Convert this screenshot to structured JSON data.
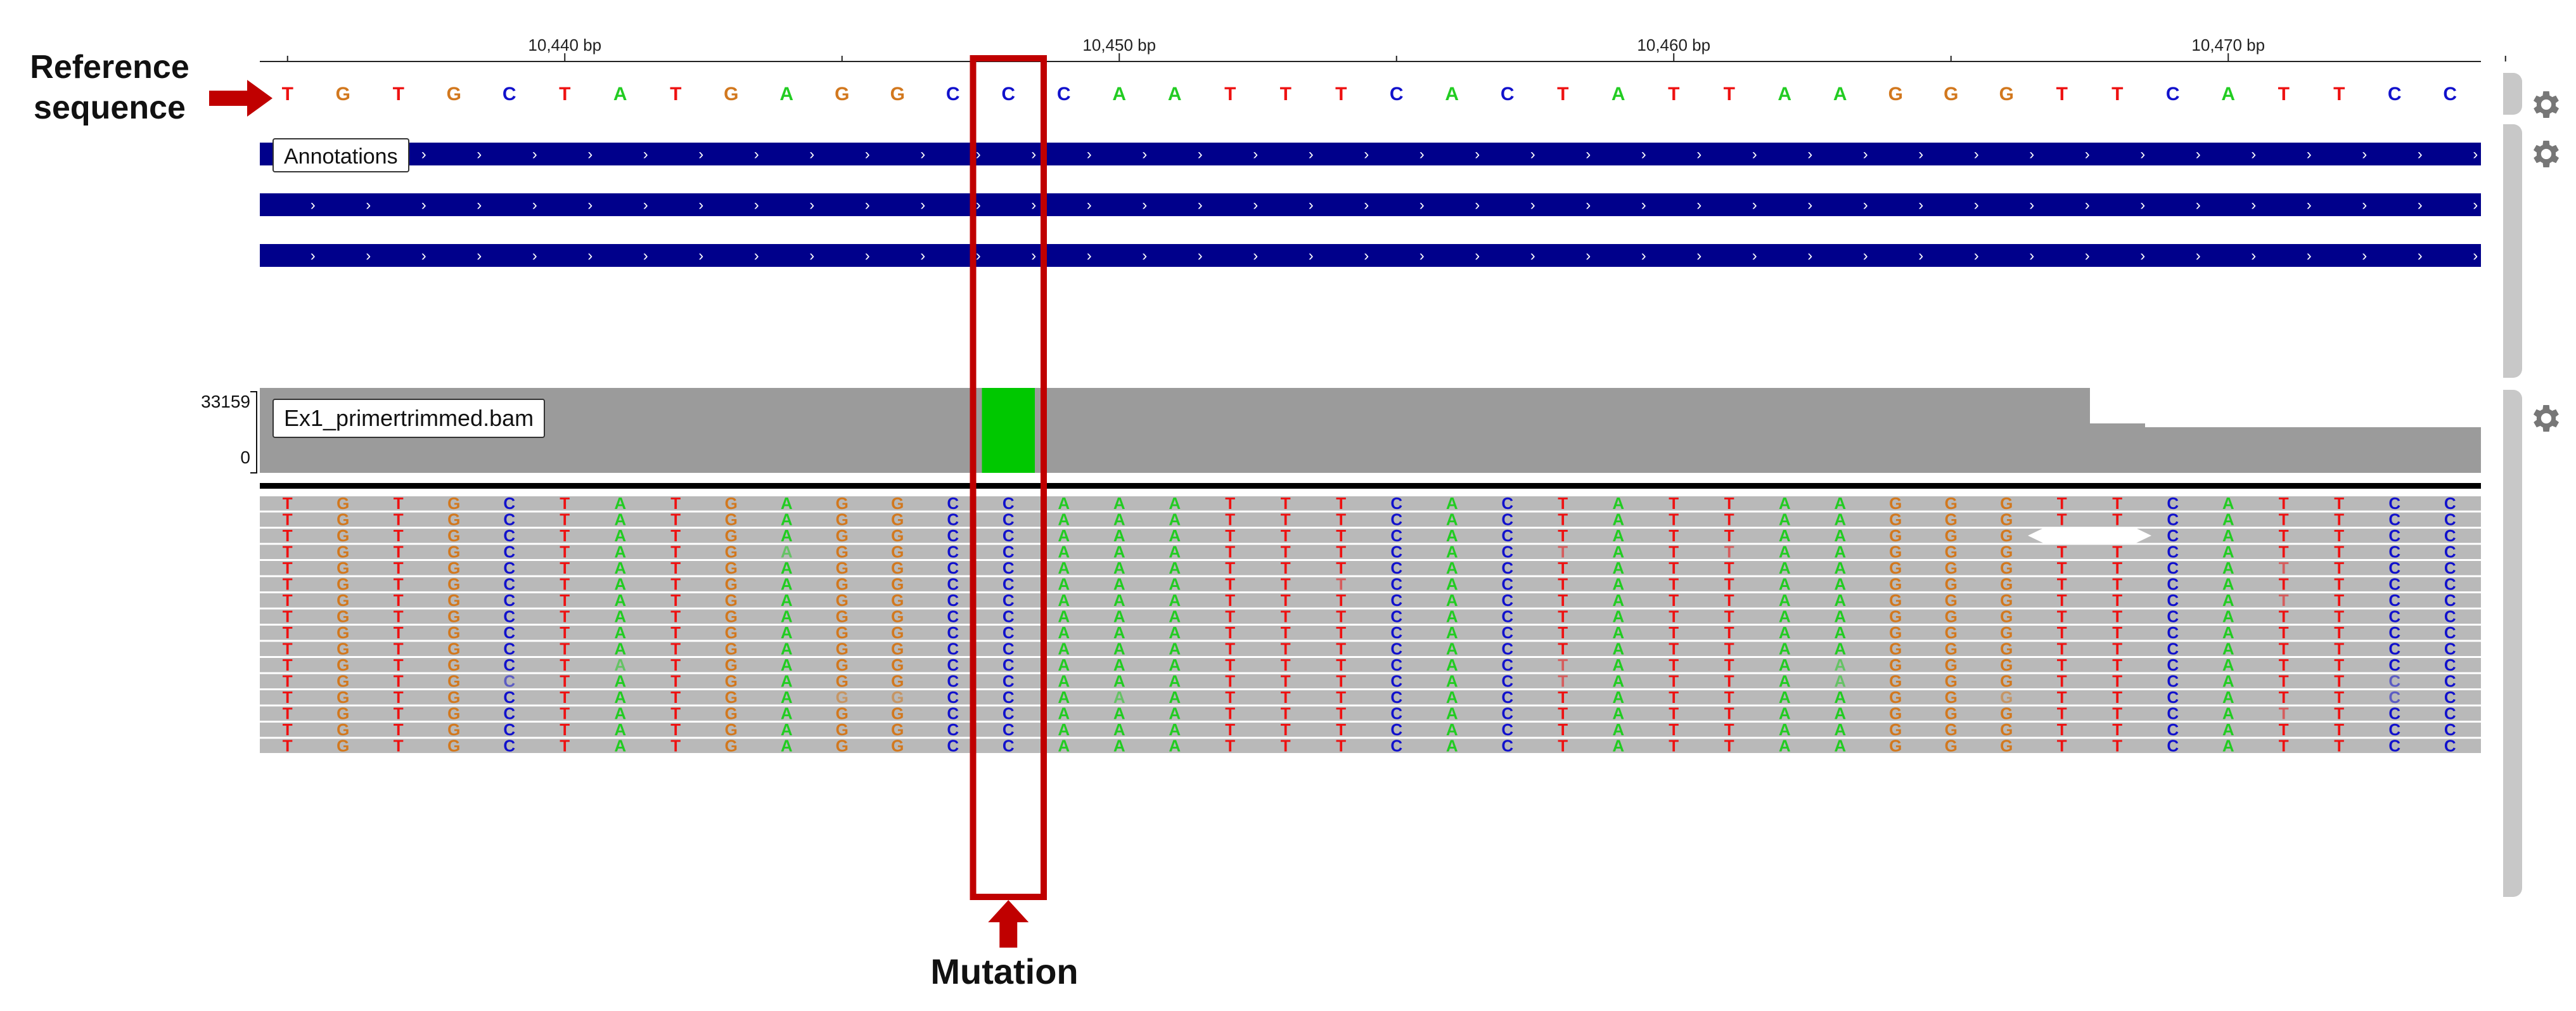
{
  "ruler": {
    "ticks": [
      {
        "label": "10,440 bp",
        "pos": 10440
      },
      {
        "label": "10,450 bp",
        "pos": 10450
      },
      {
        "label": "10,460 bp",
        "pos": 10460
      },
      {
        "label": "10,470 bp",
        "pos": 10470
      }
    ]
  },
  "reference": {
    "start": 10435,
    "bases": "TGTGCTATGAGGCCCAATTTCACTATTAAGGGTTCATTCC"
  },
  "annotations": {
    "label": "Annotations",
    "rows": 3
  },
  "bam": {
    "label": "Ex1_primertrimmed.bam",
    "coverage_max": "33159",
    "coverage_min": "0",
    "read_bases": "TGTGCTATGAGGCCAAATTTCACTATTAAGGGTTCATTCC",
    "read_rows": 16,
    "mutation_index": 13,
    "deletion": {
      "row": 2,
      "from_index": 32,
      "to_index": 33
    }
  },
  "colors": {
    "A": "#22cc22",
    "C": "#1111cc",
    "G": "#d2781e",
    "T": "#ee1111",
    "annotation_bar": "#00008b",
    "read_bg": "#b9b9b9",
    "coverage": "#9b9b9b",
    "mutation_fill": "#00c800",
    "highlight": "#c00000"
  },
  "callouts": {
    "reference": "Reference sequence",
    "mutation": "Mutation"
  }
}
